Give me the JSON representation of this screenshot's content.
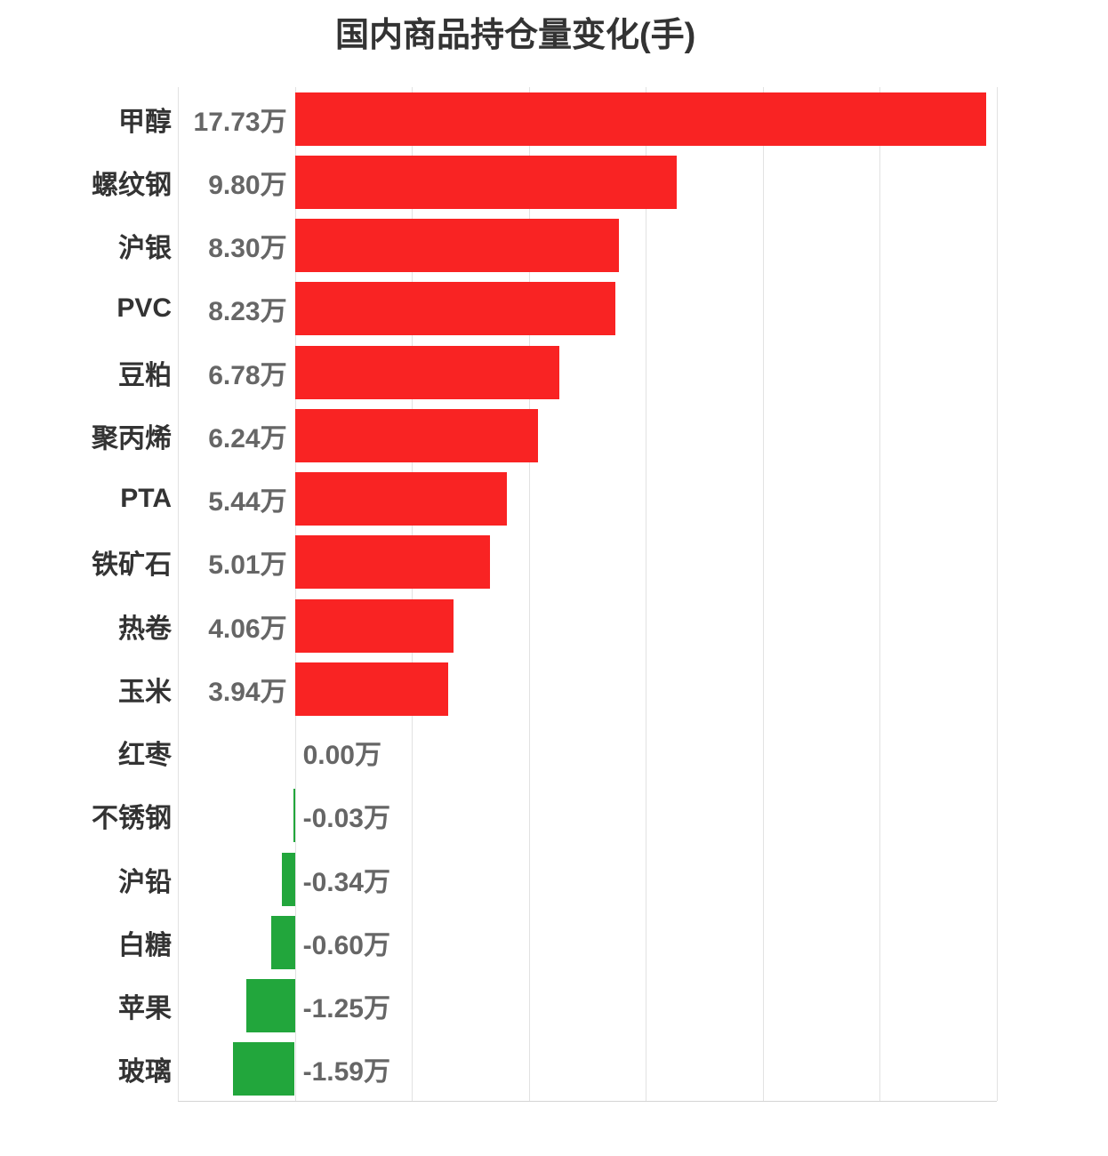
{
  "colors": {
    "bar_positive": "#f92323",
    "bar_negative": "#22a63c",
    "grid_line": "#e2e2e2",
    "axis_line": "#d4d4d4",
    "title_text": "#333333",
    "category_text": "#333333",
    "value_text": "#666666",
    "background": "#ffffff"
  },
  "chart_data": {
    "type": "bar",
    "orientation": "horizontal",
    "title": "国内商品持仓量变化(手)",
    "unit": "万",
    "xlim": [
      -3,
      18
    ],
    "x_step": 3,
    "grid": true,
    "legend": false,
    "axis_tick_labels_visible": false,
    "categories": [
      "甲醇",
      "螺纹钢",
      "沪银",
      "PVC",
      "豆粕",
      "聚丙烯",
      "PTA",
      "铁矿石",
      "热卷",
      "玉米",
      "红枣",
      "不锈钢",
      "沪铅",
      "白糖",
      "苹果",
      "玻璃"
    ],
    "values": [
      17.73,
      9.8,
      8.3,
      8.23,
      6.78,
      6.24,
      5.44,
      5.01,
      4.06,
      3.94,
      0.0,
      -0.03,
      -0.34,
      -0.6,
      -1.25,
      -1.59
    ],
    "value_labels": [
      "17.73万",
      "9.80万",
      "8.30万",
      "8.23万",
      "6.78万",
      "6.24万",
      "5.44万",
      "5.01万",
      "4.06万",
      "3.94万",
      "0.00万",
      "-0.03万",
      "-0.34万",
      "-0.60万",
      "-1.25万",
      "-1.59万"
    ]
  }
}
